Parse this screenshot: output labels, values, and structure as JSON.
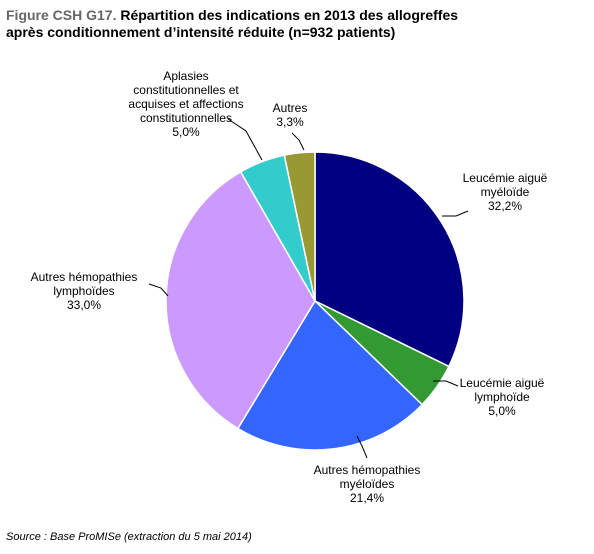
{
  "header": {
    "prefix": "Figure CSH G17.",
    "title_line1": " Répartition des indications en 2013 des allogreffes",
    "title_line2": "après conditionnement d’intensité réduite (n=932 patients)"
  },
  "chart_data": {
    "type": "pie",
    "start_angle_deg": 0,
    "direction": "clockwise",
    "slices": [
      {
        "label_lines": [
          "Leucémie aiguë",
          "myéloïde"
        ],
        "value": 32.2,
        "value_text": "32,2%",
        "color": "#000080"
      },
      {
        "label_lines": [
          "Leucémie aiguë",
          "lymphoïde"
        ],
        "value": 5.0,
        "value_text": "5,0%",
        "color": "#339933"
      },
      {
        "label_lines": [
          "Autres hémopathies",
          "myéloïdes"
        ],
        "value": 21.4,
        "value_text": "21,4%",
        "color": "#3366FF"
      },
      {
        "label_lines": [
          "Autres hémopathies",
          "lymphoïdes"
        ],
        "value": 33.0,
        "value_text": "33,0%",
        "color": "#CC99FF"
      },
      {
        "label_lines": [
          "Aplasies",
          "constitutionnelles et",
          "acquises et affections",
          "constitutionnelles"
        ],
        "value": 5.0,
        "value_text": "5,0%",
        "color": "#33CCCC"
      },
      {
        "label_lines": [
          "Autres"
        ],
        "value": 3.3,
        "value_text": "3,3%",
        "color": "#999933"
      }
    ],
    "legend": "none"
  },
  "footer": {
    "source": "Source : Base ProMISe (extraction du 5 mai 2014)"
  }
}
